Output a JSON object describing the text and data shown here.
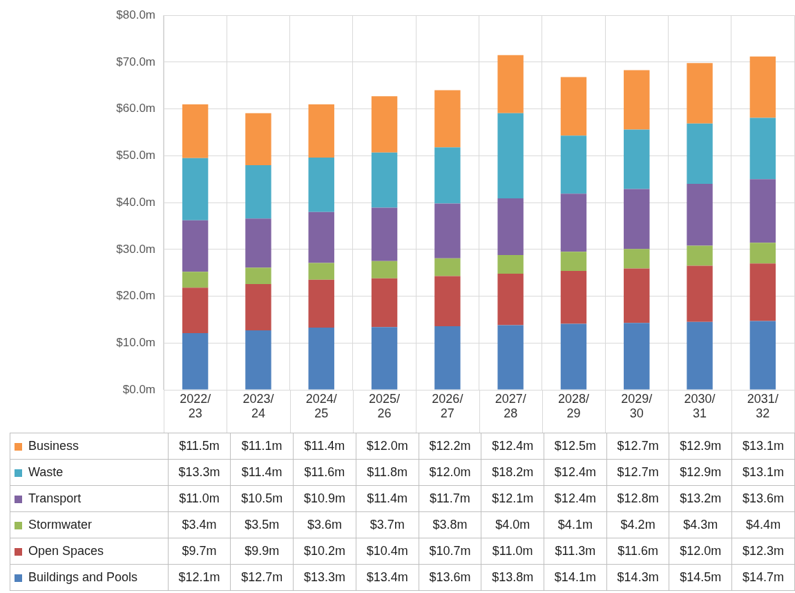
{
  "chart_data": {
    "type": "bar",
    "stacked": true,
    "grid": true,
    "legend": "bottom",
    "categories": [
      "2022/23",
      "2023/24",
      "2024/25",
      "2025/26",
      "2026/27",
      "2027/28",
      "2028/29",
      "2029/30",
      "2030/31",
      "2031/32"
    ],
    "ylim": [
      0,
      80
    ],
    "yticks": [
      {
        "value": 0,
        "label": "$0.0m"
      },
      {
        "value": 10,
        "label": "$10.0m"
      },
      {
        "value": 20,
        "label": "$20.0m"
      },
      {
        "value": 30,
        "label": "$30.0m"
      },
      {
        "value": 40,
        "label": "$40.0m"
      },
      {
        "value": 50,
        "label": "$50.0m"
      },
      {
        "value": 60,
        "label": "$60.0m"
      },
      {
        "value": 70,
        "label": "$70.0m"
      },
      {
        "value": 80,
        "label": "$80.0m"
      }
    ],
    "series": [
      {
        "name": "Buildings and Pools",
        "color": "#4f81bd",
        "values": [
          12.1,
          12.7,
          13.3,
          13.4,
          13.6,
          13.8,
          14.1,
          14.3,
          14.5,
          14.7
        ],
        "value_labels": [
          "$12.1m",
          "$12.7m",
          "$13.3m",
          "$13.4m",
          "$13.6m",
          "$13.8m",
          "$14.1m",
          "$14.3m",
          "$14.5m",
          "$14.7m"
        ]
      },
      {
        "name": "Open Spaces",
        "color": "#c0504d",
        "values": [
          9.7,
          9.9,
          10.2,
          10.4,
          10.7,
          11.0,
          11.3,
          11.6,
          12.0,
          12.3
        ],
        "value_labels": [
          "$9.7m",
          "$9.9m",
          "$10.2m",
          "$10.4m",
          "$10.7m",
          "$11.0m",
          "$11.3m",
          "$11.6m",
          "$12.0m",
          "$12.3m"
        ]
      },
      {
        "name": "Stormwater",
        "color": "#9bbb59",
        "values": [
          3.4,
          3.5,
          3.6,
          3.7,
          3.8,
          4.0,
          4.1,
          4.2,
          4.3,
          4.4
        ],
        "value_labels": [
          "$3.4m",
          "$3.5m",
          "$3.6m",
          "$3.7m",
          "$3.8m",
          "$4.0m",
          "$4.1m",
          "$4.2m",
          "$4.3m",
          "$4.4m"
        ]
      },
      {
        "name": "Transport",
        "color": "#8064a2",
        "values": [
          11.0,
          10.5,
          10.9,
          11.4,
          11.7,
          12.1,
          12.4,
          12.8,
          13.2,
          13.6
        ],
        "value_labels": [
          "$11.0m",
          "$10.5m",
          "$10.9m",
          "$11.4m",
          "$11.7m",
          "$12.1m",
          "$12.4m",
          "$12.8m",
          "$13.2m",
          "$13.6m"
        ]
      },
      {
        "name": "Waste",
        "color": "#4bacc6",
        "values": [
          13.3,
          11.4,
          11.6,
          11.8,
          12.0,
          18.2,
          12.4,
          12.7,
          12.9,
          13.1
        ],
        "value_labels": [
          "$13.3m",
          "$11.4m",
          "$11.6m",
          "$11.8m",
          "$12.0m",
          "$18.2m",
          "$12.4m",
          "$12.7m",
          "$12.9m",
          "$13.1m"
        ]
      },
      {
        "name": "Business",
        "color": "#f79646",
        "values": [
          11.5,
          11.1,
          11.4,
          12.0,
          12.2,
          12.4,
          12.5,
          12.7,
          12.9,
          13.1
        ],
        "value_labels": [
          "$11.5m",
          "$11.1m",
          "$11.4m",
          "$12.0m",
          "$12.2m",
          "$12.4m",
          "$12.5m",
          "$12.7m",
          "$12.9m",
          "$13.1m"
        ]
      }
    ]
  }
}
